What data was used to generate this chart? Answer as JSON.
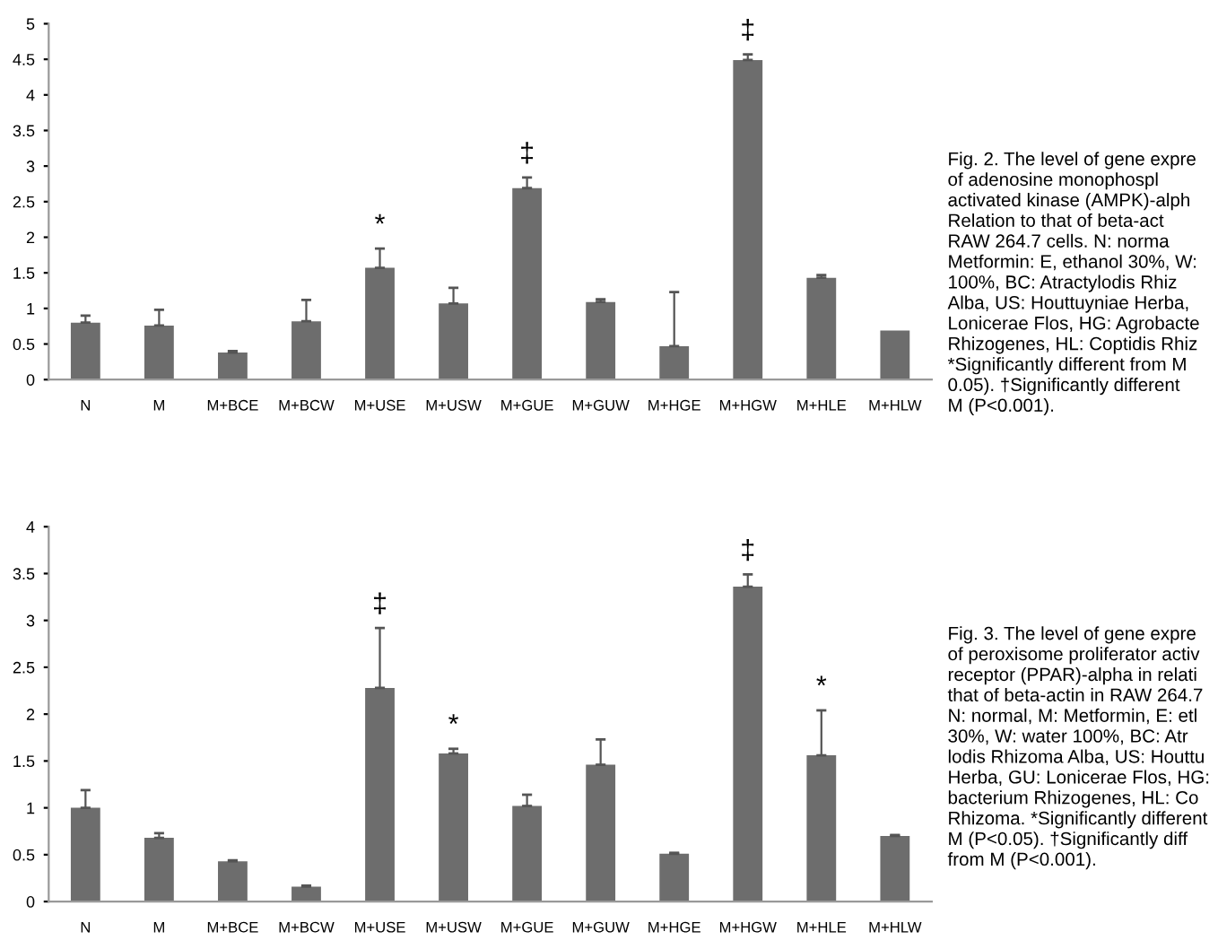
{
  "chart_data": [
    {
      "type": "bar",
      "categories": [
        "N",
        "M",
        "M+BCE",
        "M+BCW",
        "M+USE",
        "M+USW",
        "M+GUE",
        "M+GUW",
        "M+HGE",
        "M+HGW",
        "M+HLE",
        "M+HLW"
      ],
      "values": [
        0.8,
        0.76,
        0.38,
        0.82,
        1.57,
        1.07,
        2.69,
        1.09,
        0.47,
        4.49,
        1.43,
        0.69
      ],
      "errors": [
        [
          0.8,
          0.9
        ],
        [
          0.76,
          0.98
        ],
        [
          0.38,
          0.4
        ],
        [
          0.82,
          1.12
        ],
        [
          1.57,
          1.84
        ],
        [
          1.07,
          1.29
        ],
        [
          2.69,
          2.84
        ],
        [
          1.09,
          1.13
        ],
        [
          0.47,
          1.23
        ],
        [
          4.49,
          4.57
        ],
        [
          1.43,
          1.47
        ],
        null
      ],
      "color": "#6d6d6d",
      "ylim": [
        0,
        5
      ],
      "yticks": [
        0,
        0.5,
        1,
        1.5,
        2,
        2.5,
        3,
        3.5,
        4,
        4.5,
        5
      ],
      "grid": false,
      "annotations": [
        {
          "text": "*",
          "x": "M+USE",
          "y": 1.84
        },
        {
          "text": "‡",
          "x": "M+GUE",
          "y": 2.84
        },
        {
          "text": "‡",
          "x": "M+HGW",
          "y": 4.57
        },
        "Fig. 2. The level of gene expre\nof adenosine monophospl\nactivated kinase (AMPK)-alph\nRelation to that of beta-act\nRAW 264.7 cells. N: norma\nMetformin: E, ethanol 30%, W:\n100%, BC: Atractylodis Rhiz\nAlba, US: Houttuyniae Herba,\nLonicerae Flos, HG: Agrobacte\nRhizogenes, HL: Coptidis Rhiz\n*Significantly different from M\n0.05). †Significantly different\nM (P<0.001)."
      ]
    },
    {
      "type": "bar",
      "categories": [
        "N",
        "M",
        "M+BCE",
        "M+BCW",
        "M+USE",
        "M+USW",
        "M+GUE",
        "M+GUW",
        "M+HGE",
        "M+HGW",
        "M+HLE",
        "M+HLW"
      ],
      "values": [
        1.0,
        0.68,
        0.43,
        0.16,
        2.28,
        1.58,
        1.02,
        1.46,
        0.51,
        3.36,
        1.56,
        0.7
      ],
      "errors": [
        [
          1.0,
          1.19
        ],
        [
          0.68,
          0.73
        ],
        [
          0.43,
          0.44
        ],
        [
          0.16,
          0.17
        ],
        [
          2.28,
          2.92
        ],
        [
          1.58,
          1.63
        ],
        [
          1.02,
          1.14
        ],
        [
          1.46,
          1.73
        ],
        [
          0.51,
          0.52
        ],
        [
          3.36,
          3.49
        ],
        [
          1.56,
          2.04
        ],
        [
          0.7,
          0.71
        ]
      ],
      "color": "#6d6d6d",
      "ylim": [
        0,
        4
      ],
      "yticks": [
        0,
        0.5,
        1,
        1.5,
        2,
        2.5,
        3,
        3.5,
        4
      ],
      "grid": false,
      "annotations": [
        {
          "text": "‡",
          "x": "M+USE",
          "y": 2.92
        },
        {
          "text": "*",
          "x": "M+USW",
          "y": 1.63
        },
        {
          "text": "‡",
          "x": "M+HGW",
          "y": 3.49
        },
        {
          "text": "*",
          "x": "M+HLE",
          "y": 2.04
        },
        "Fig. 3. The level of gene expre\nof peroxisome proliferator activ\nreceptor (PPAR)-alpha in relati\nthat of beta-actin in RAW 264.7\nN: normal, M: Metformin, E: etl\n30%, W: water 100%, BC: Atr\nlodis Rhizoma Alba, US: Houttu\nHerba, GU: Lonicerae Flos, HG:\nbacterium Rhizogenes, HL: Co\nRhizoma. *Significantly different\nM (P<0.05). †Significantly diff\nfrom M (P<0.001)."
      ]
    }
  ]
}
